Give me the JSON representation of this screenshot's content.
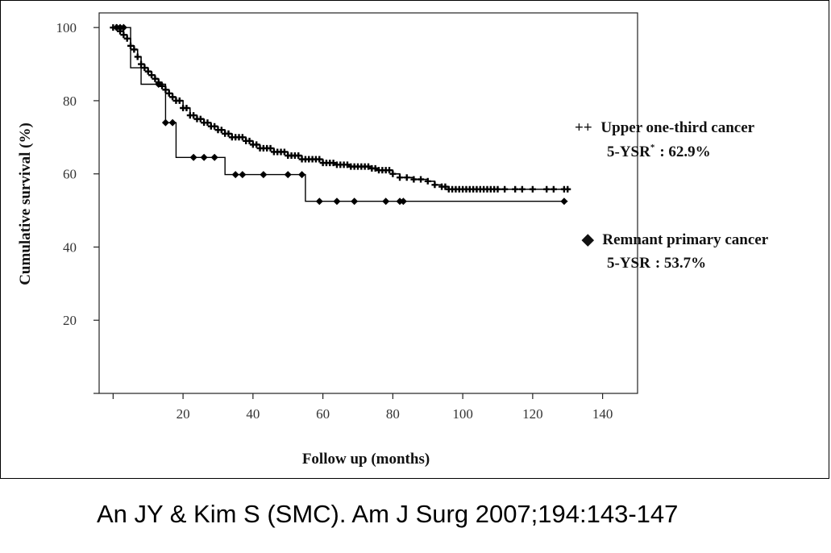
{
  "chart_data": {
    "type": "line",
    "xlabel": "Follow up (months)",
    "ylabel": "Cumulative survival (%)",
    "xlim": [
      -4,
      150
    ],
    "ylim": [
      0,
      104
    ],
    "xticks": [
      0,
      20,
      40,
      60,
      80,
      100,
      120,
      140
    ],
    "xtick_labels": [
      "",
      "20",
      "40",
      "60",
      "80",
      "100",
      "120",
      "140"
    ],
    "yticks": [
      0,
      20,
      40,
      60,
      80,
      100
    ],
    "ytick_labels": [
      "",
      "20",
      "40",
      "60",
      "80",
      "100"
    ],
    "grid": false,
    "legend_placement": "right",
    "series": [
      {
        "name": "Upper one-third cancer",
        "legend_marker": "++",
        "stat_label": "5-YSR",
        "stat_sup": "*",
        "stat_value": ": 62.9%",
        "marker": "plus",
        "color": "#000000",
        "x": [
          0,
          2,
          3,
          4,
          5,
          6,
          7,
          8,
          9,
          10,
          11,
          12,
          13,
          14,
          15,
          16,
          17,
          18,
          20,
          22,
          24,
          26,
          28,
          30,
          32,
          34,
          36,
          38,
          40,
          42,
          44,
          46,
          48,
          50,
          52,
          54,
          56,
          58,
          60,
          62,
          64,
          66,
          68,
          70,
          72,
          74,
          76,
          78,
          80,
          82,
          84,
          86,
          88,
          90,
          92,
          94,
          96,
          130
        ],
        "y": [
          100,
          99,
          98,
          97,
          95,
          94,
          92,
          90,
          89,
          88,
          87,
          86,
          85,
          84,
          83,
          82,
          81,
          80,
          78,
          76,
          75,
          74,
          73,
          72,
          71,
          70,
          70,
          69,
          68,
          67,
          67,
          66,
          66,
          65,
          65,
          64,
          64,
          64,
          63,
          63,
          62.5,
          62.5,
          62,
          62,
          62,
          61.5,
          61,
          61,
          60,
          59,
          59,
          58.5,
          58.5,
          58,
          57,
          56.5,
          55.8,
          55.8
        ],
        "censored_x": [
          0,
          1,
          2,
          3,
          4,
          5,
          6,
          7,
          8,
          9,
          10,
          11,
          12,
          13,
          14,
          15,
          16,
          17,
          18,
          19,
          20,
          21,
          22,
          23,
          24,
          25,
          26,
          27,
          28,
          29,
          30,
          31,
          32,
          33,
          34,
          35,
          36,
          37,
          38,
          39,
          40,
          41,
          42,
          43,
          44,
          45,
          46,
          47,
          48,
          49,
          50,
          51,
          52,
          53,
          54,
          55,
          56,
          57,
          58,
          59,
          60,
          61,
          62,
          63,
          64,
          65,
          66,
          67,
          68,
          69,
          70,
          71,
          72,
          73,
          74,
          75,
          76,
          77,
          78,
          79,
          80,
          82,
          84,
          86,
          88,
          90,
          92,
          94,
          95,
          96,
          97,
          98,
          99,
          100,
          101,
          102,
          103,
          104,
          105,
          106,
          107,
          108,
          109,
          110,
          112,
          115,
          117,
          120,
          124,
          126,
          129,
          130
        ]
      },
      {
        "name": "Remnant primary cancer",
        "legend_marker": "◆",
        "stat_label": "5-YSR",
        "stat_sup": "",
        "stat_value": ": 53.7%",
        "marker": "diamond",
        "color": "#000000",
        "x": [
          0,
          5,
          8,
          15,
          18,
          32,
          55,
          130
        ],
        "y": [
          100,
          89,
          84.5,
          74,
          64.5,
          59.8,
          52.5,
          52.5
        ],
        "censored_x": [
          1,
          2,
          3,
          13,
          15,
          17,
          23,
          26,
          29,
          35,
          37,
          43,
          50,
          54,
          59,
          64,
          69,
          78,
          82,
          83,
          129
        ]
      }
    ]
  },
  "citation": "An JY & Kim S (SMC). Am J Surg 2007;194:143-147"
}
